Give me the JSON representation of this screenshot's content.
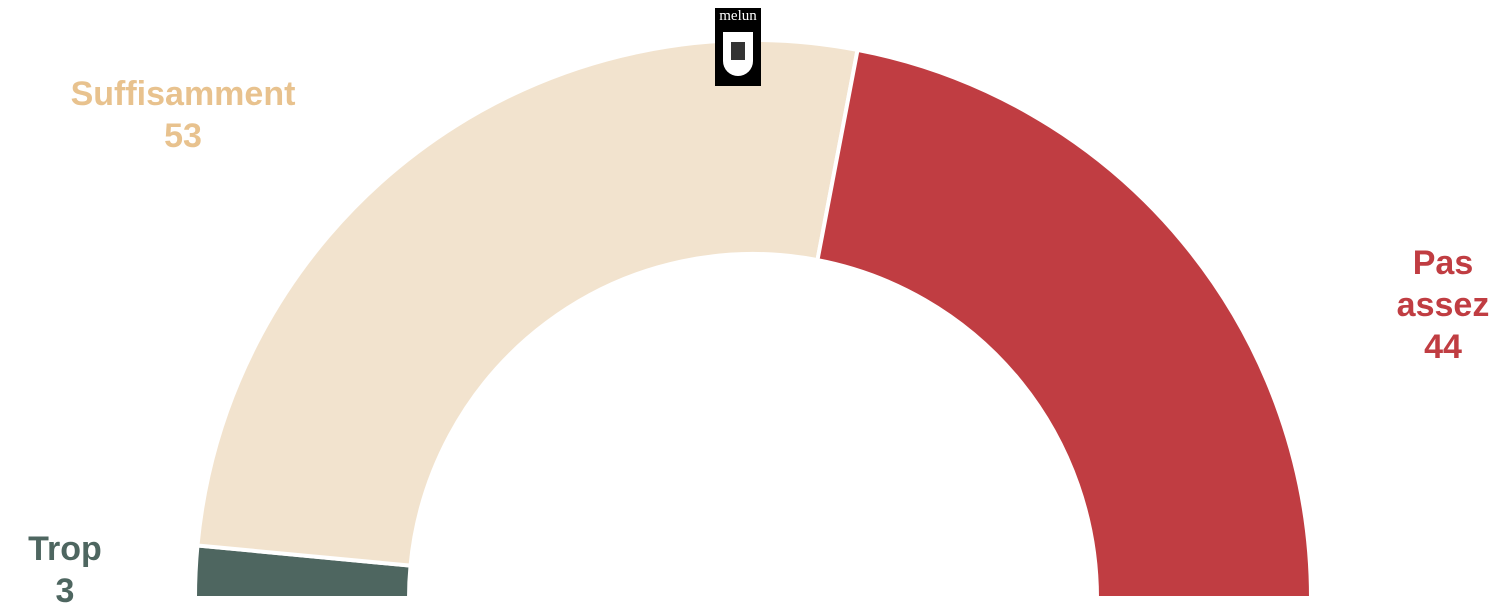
{
  "logo_text": "melun",
  "chart_data": {
    "type": "semi-donut",
    "categories": [
      "Trop",
      "Suffisamment",
      "Pas assez"
    ],
    "values": [
      3,
      53,
      44
    ],
    "colors": [
      "#4e6660",
      "#f2e3ce",
      "#c03d42"
    ],
    "label_colors": [
      "#4e6660",
      "#e8c28e",
      "#c03d42"
    ]
  }
}
